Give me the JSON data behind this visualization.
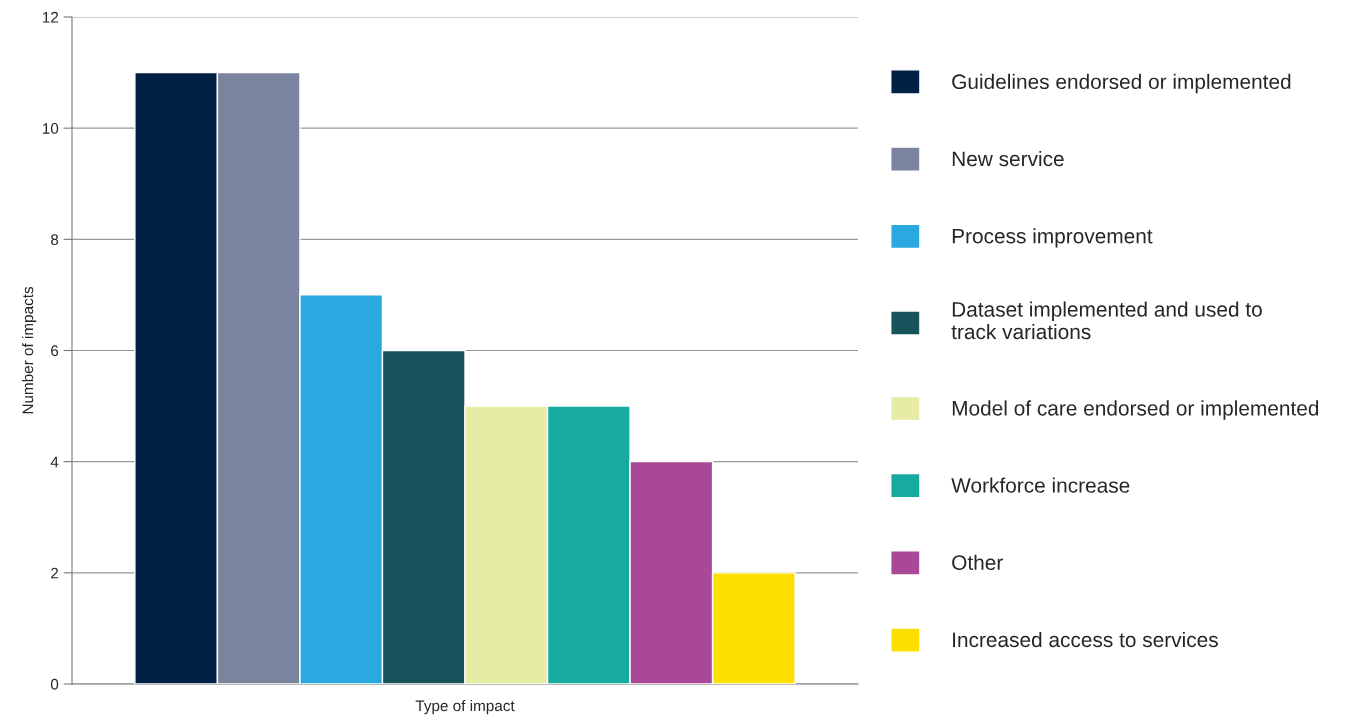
{
  "chart_data": {
    "type": "bar",
    "xlabel": "Type of impact",
    "ylabel": "Number of impacts",
    "categories": [
      null
    ],
    "series": [
      {
        "name": "Guidelines endorsed or implemented",
        "color": "#012144",
        "values": [
          11
        ]
      },
      {
        "name": "New service",
        "color": "#7b849e",
        "values": [
          11
        ]
      },
      {
        "name": "Process improvement",
        "color": "#2aa9e0",
        "values": [
          7
        ]
      },
      {
        "name": "Dataset implemented and used to\ntrack variations",
        "color": "#17535b",
        "values": [
          6
        ]
      },
      {
        "name": "Model of care endorsed or implemented",
        "color": "#e6eca6",
        "values": [
          5
        ]
      },
      {
        "name": "Workforce increase",
        "color": "#17aaa1",
        "values": [
          5
        ]
      },
      {
        "name": "Other",
        "color": "#a84897",
        "values": [
          4
        ]
      },
      {
        "name": "Increased access to services",
        "color": "#fde000",
        "values": [
          2
        ]
      }
    ],
    "ylim": [
      0,
      12
    ],
    "yticks": [
      0,
      2,
      4,
      6,
      8,
      10,
      12
    ],
    "grid": "y",
    "legend": "right"
  }
}
